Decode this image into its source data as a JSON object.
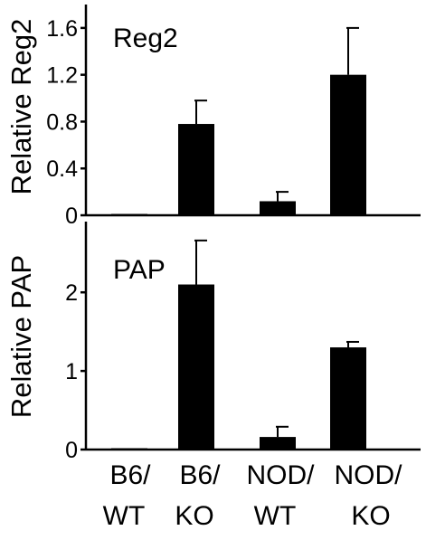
{
  "chart_data": [
    {
      "type": "bar",
      "title": "Reg2",
      "xlabel": "",
      "ylabel": "Relative Reg2",
      "ylim": [
        0,
        1.8
      ],
      "ticks": [
        "0",
        "0.4",
        "0.8",
        "1.2",
        "1.6"
      ],
      "tick_values": [
        0,
        0.4,
        0.8,
        1.2,
        1.6
      ],
      "categories": [
        "B6/WT",
        "B6/KO",
        "NOD/WT",
        "NOD/KO"
      ],
      "values": [
        0.005,
        0.78,
        0.12,
        1.2
      ],
      "errors": [
        0,
        0.2,
        0.08,
        0.4
      ]
    },
    {
      "type": "bar",
      "title": "PAP",
      "xlabel": "",
      "ylabel": "Relative PAP",
      "ylim": [
        0,
        2.9
      ],
      "ticks": [
        "0",
        "1",
        "2"
      ],
      "tick_values": [
        0,
        1,
        2
      ],
      "categories": [
        "B6/WT",
        "B6/KO",
        "NOD/WT",
        "NOD/KO"
      ],
      "values": [
        0.01,
        2.1,
        0.16,
        1.3
      ],
      "errors": [
        0,
        0.56,
        0.13,
        0.07
      ]
    }
  ],
  "x_categories": [
    {
      "line1": "B6/",
      "line2": "WT"
    },
    {
      "line1": "B6/",
      "line2": "KO"
    },
    {
      "line1": "NOD/",
      "line2": "WT"
    },
    {
      "line1": "NOD/",
      "line2": "KO"
    }
  ],
  "colors": {
    "bar": "#000000",
    "axis": "#000000",
    "background": "#ffffff"
  }
}
